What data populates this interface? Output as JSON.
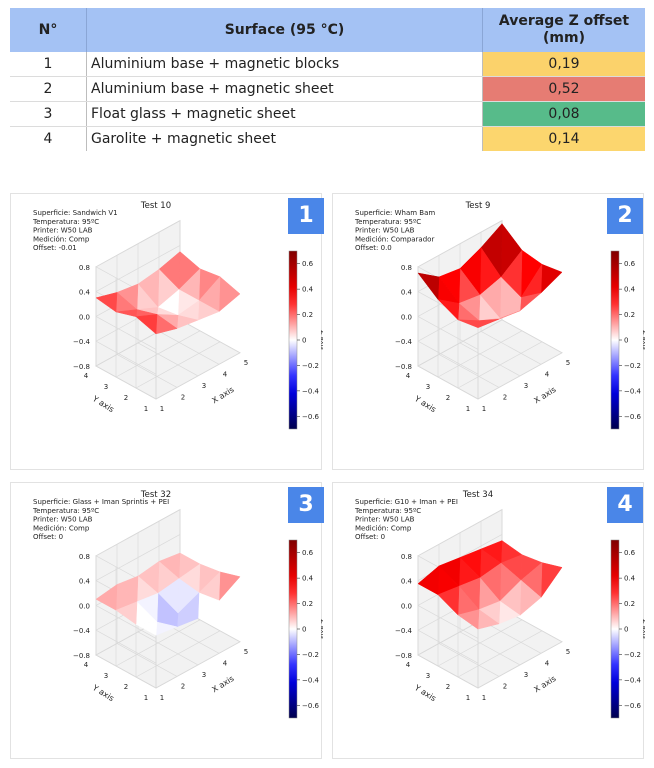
{
  "table": {
    "headers": {
      "no": "N°",
      "surface": "Surface (95 °C)",
      "average": "Average Z offset (mm)"
    },
    "rows": [
      {
        "no": "1",
        "surface": "Aluminium base + magnetic blocks",
        "offset": "0,19",
        "color": "#fbd26b"
      },
      {
        "no": "2",
        "surface": "Aluminium base + magnetic sheet",
        "offset": "0,52",
        "color": "#e67c73"
      },
      {
        "no": "3",
        "surface": "Float glass + magnetic sheet",
        "offset": "0,08",
        "color": "#57bb8a"
      },
      {
        "no": "4",
        "surface": "Garolite + magnetic sheet",
        "offset": "0,14",
        "color": "#fcd66e"
      }
    ]
  },
  "chart_data": [
    {
      "type": "surface3d",
      "badge": "1",
      "title": "Test 10",
      "info": [
        "Superficie: Sandwich V1",
        "Temperatura: 95ºC",
        "Printer: W50 LAB",
        "Medición: Comp",
        "Offset: -0.01"
      ],
      "xlabel": "X axis",
      "ylabel": "Y axis",
      "zlabel": "Z axis",
      "xticks": [
        "1",
        "2",
        "3",
        "4",
        "5"
      ],
      "yticks": [
        "1",
        "2",
        "3",
        "4"
      ],
      "zticks": [
        "0.8",
        "0.4",
        "0.0",
        "−0.4",
        "−0.8"
      ],
      "zlim": [
        -0.8,
        0.8
      ],
      "colorbar": {
        "ticks": [
          "0.6",
          "0.4",
          "0.2",
          "0",
          "−0.2",
          "−0.4",
          "−0.6"
        ],
        "range": [
          -0.7,
          0.7
        ]
      },
      "z": [
        [
          0.25,
          0.15,
          0.1,
          0.05,
          0.15
        ],
        [
          0.35,
          0.2,
          0.0,
          0.05,
          0.25
        ],
        [
          0.25,
          0.1,
          -0.05,
          0.05,
          0.2
        ],
        [
          0.3,
          0.2,
          0.15,
          0.2,
          0.3
        ]
      ]
    },
    {
      "type": "surface3d",
      "badge": "2",
      "title": "Test 9",
      "info": [
        "Superficie: Wham Bam",
        "Temperatura: 95ºC",
        "Printer: W50 LAB",
        "Medición: Comparador",
        "Offset: 0.0"
      ],
      "xlabel": "X axis",
      "ylabel": "Y axis",
      "zlabel": "Z axis",
      "xticks": [
        "1",
        "2",
        "3",
        "4",
        "5"
      ],
      "yticks": [
        "1",
        "2",
        "3",
        "4"
      ],
      "zticks": [
        "0.8",
        "0.4",
        "0.0",
        "−0.4",
        "−0.8"
      ],
      "zlim": [
        -0.8,
        0.8
      ],
      "colorbar": {
        "ticks": [
          "0.6",
          "0.4",
          "0.2",
          "0",
          "−0.2",
          "−0.4",
          "−0.6"
        ],
        "range": [
          -0.7,
          0.7
        ]
      },
      "z": [
        [
          0.35,
          0.3,
          0.25,
          0.35,
          0.5
        ],
        [
          0.3,
          0.1,
          -0.05,
          0.1,
          0.45
        ],
        [
          0.45,
          0.2,
          0.15,
          0.25,
          0.5
        ],
        [
          0.7,
          0.45,
          0.4,
          0.55,
          0.75
        ]
      ]
    },
    {
      "type": "surface3d",
      "badge": "3",
      "title": "Test 32",
      "info": [
        "Superficie: Glass + Iman Sprintis + PEI",
        "Temperatura: 95ºC",
        "Printer: W50 LAB",
        "Medición: Comp",
        "Offset: 0"
      ],
      "xlabel": "X axis",
      "ylabel": "Y axis",
      "zlabel": "Z axis",
      "xticks": [
        "1",
        "2",
        "3",
        "4",
        "5"
      ],
      "yticks": [
        "1",
        "2",
        "3",
        "4"
      ],
      "zticks": [
        "0.8",
        "0.4",
        "0.0",
        "−0.4",
        "−0.8"
      ],
      "zlim": [
        -0.8,
        0.8
      ],
      "colorbar": {
        "ticks": [
          "0.6",
          "0.4",
          "0.2",
          "0",
          "−0.2",
          "−0.4",
          "−0.6"
        ],
        "range": [
          -0.7,
          0.7
        ]
      },
      "z": [
        [
          0.05,
          0.0,
          -0.05,
          0.05,
          0.25
        ],
        [
          0.05,
          -0.1,
          -0.15,
          0.0,
          0.15
        ],
        [
          0.1,
          0.05,
          0.0,
          0.05,
          0.1
        ],
        [
          0.1,
          0.15,
          0.1,
          0.15,
          0.1
        ]
      ]
    },
    {
      "type": "surface3d",
      "badge": "4",
      "title": "Test 34",
      "info": [
        "Superficie: G10 + Iman + PEI",
        "Temperatura: 95ºC",
        "Printer: W50 LAB",
        "Medición: Comp",
        "Offset: 0"
      ],
      "xlabel": "X axis",
      "ylabel": "Y axis",
      "zlabel": "Z axis",
      "xticks": [
        "1",
        "2",
        "3",
        "4",
        "5"
      ],
      "yticks": [
        "1",
        "2",
        "3",
        "4"
      ],
      "zticks": [
        "0.8",
        "0.4",
        "0.0",
        "−0.4",
        "−0.8"
      ],
      "zlim": [
        -0.8,
        0.8
      ],
      "colorbar": {
        "ticks": [
          "0.6",
          "0.4",
          "0.2",
          "0",
          "−0.2",
          "−0.4",
          "−0.6"
        ],
        "range": [
          -0.7,
          0.7
        ]
      },
      "z": [
        [
          0.15,
          0.05,
          0.0,
          0.1,
          0.4
        ],
        [
          0.2,
          0.1,
          0.05,
          0.2,
          0.3
        ],
        [
          0.35,
          0.3,
          0.25,
          0.3,
          0.25
        ],
        [
          0.35,
          0.45,
          0.4,
          0.35,
          0.3
        ]
      ]
    }
  ]
}
